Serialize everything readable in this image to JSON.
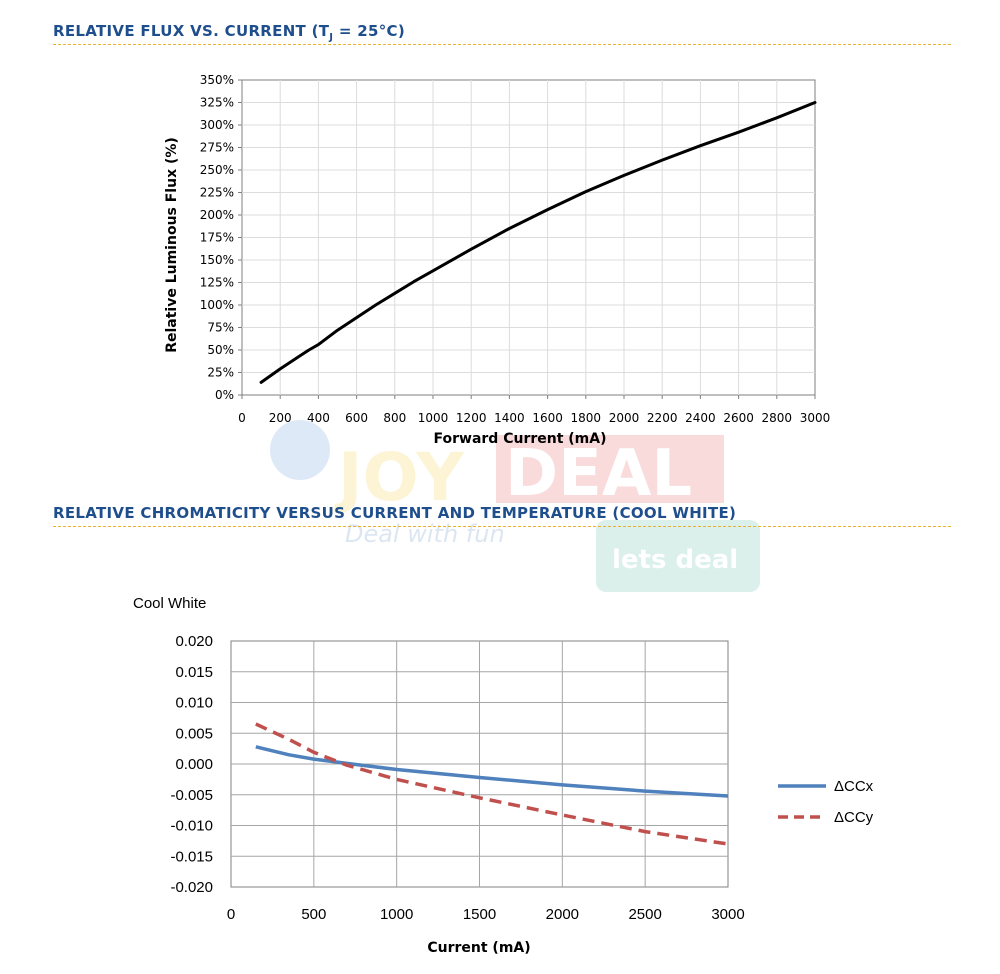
{
  "sections": {
    "flux_title": "RELATIVE FLUX VS. CURRENT (T",
    "flux_title_sub": "J",
    "flux_title_rest": " = 25°C)",
    "chroma_title": "RELATIVE CHROMATICITY VERSUS CURRENT AND TEMPERATURE  (COOL WHITE)"
  },
  "watermark": {
    "brand_part1": "JOY",
    "brand_part2": "DEAL",
    "tagline": "Deal with fun",
    "badge": "lets deal"
  },
  "colors": {
    "title": "#1f4e8c",
    "rule": "#e8b12e",
    "flux_line": "#000000",
    "dccx": "#4f81bd",
    "dccy": "#c0504d"
  },
  "chart_data": [
    {
      "type": "line",
      "title": "RELATIVE FLUX VS. CURRENT (TJ = 25°C)",
      "xlabel": "Forward Current (mA)",
      "ylabel": "Relative Luminous Flux (%)",
      "xlim": [
        0,
        3000
      ],
      "ylim": [
        0,
        350
      ],
      "x_ticks": [
        "0",
        "200",
        "400",
        "600",
        "800",
        "1000",
        "1200",
        "1400",
        "1600",
        "1800",
        "2000",
        "2200",
        "2400",
        "2600",
        "2800",
        "3000"
      ],
      "y_ticks": [
        "0%",
        "25%",
        "50%",
        "75%",
        "100%",
        "125%",
        "150%",
        "175%",
        "200%",
        "225%",
        "250%",
        "275%",
        "300%",
        "325%",
        "350%"
      ],
      "grid": true,
      "series": [
        {
          "name": "Relative Luminous Flux",
          "x": [
            100,
            200,
            300,
            350,
            400,
            500,
            600,
            700,
            800,
            900,
            1000,
            1200,
            1400,
            1600,
            1800,
            2000,
            2200,
            2400,
            2600,
            2800,
            3000
          ],
          "y": [
            14,
            29,
            43,
            50,
            56,
            72,
            86,
            100,
            113,
            126,
            138,
            162,
            185,
            206,
            226,
            244,
            261,
            277,
            292,
            308,
            325
          ]
        }
      ]
    },
    {
      "type": "line",
      "title": "Cool White",
      "xlabel": "Current (mA)",
      "ylabel": "",
      "xlim": [
        0,
        3000
      ],
      "ylim": [
        -0.02,
        0.02
      ],
      "x_ticks": [
        "0",
        "500",
        "1000",
        "1500",
        "2000",
        "2500",
        "3000"
      ],
      "y_ticks": [
        "-0.020",
        "-0.015",
        "-0.010",
        "-0.005",
        "0.000",
        "0.005",
        "0.010",
        "0.015",
        "0.020"
      ],
      "grid": true,
      "legend": "right",
      "series": [
        {
          "name": "ΔCCx",
          "style": "solid",
          "x": [
            150,
            350,
            500,
            700,
            1000,
            1500,
            2000,
            2500,
            3000
          ],
          "y": [
            0.0028,
            0.0015,
            0.0008,
            0.0001,
            -0.0009,
            -0.0022,
            -0.0034,
            -0.0044,
            -0.0052
          ]
        },
        {
          "name": "ΔCCy",
          "style": "dashed",
          "x": [
            150,
            350,
            500,
            700,
            1000,
            1500,
            2000,
            2500,
            3000
          ],
          "y": [
            0.0065,
            0.004,
            0.0019,
            -0.0002,
            -0.0025,
            -0.0055,
            -0.0083,
            -0.011,
            -0.013
          ]
        }
      ]
    }
  ]
}
